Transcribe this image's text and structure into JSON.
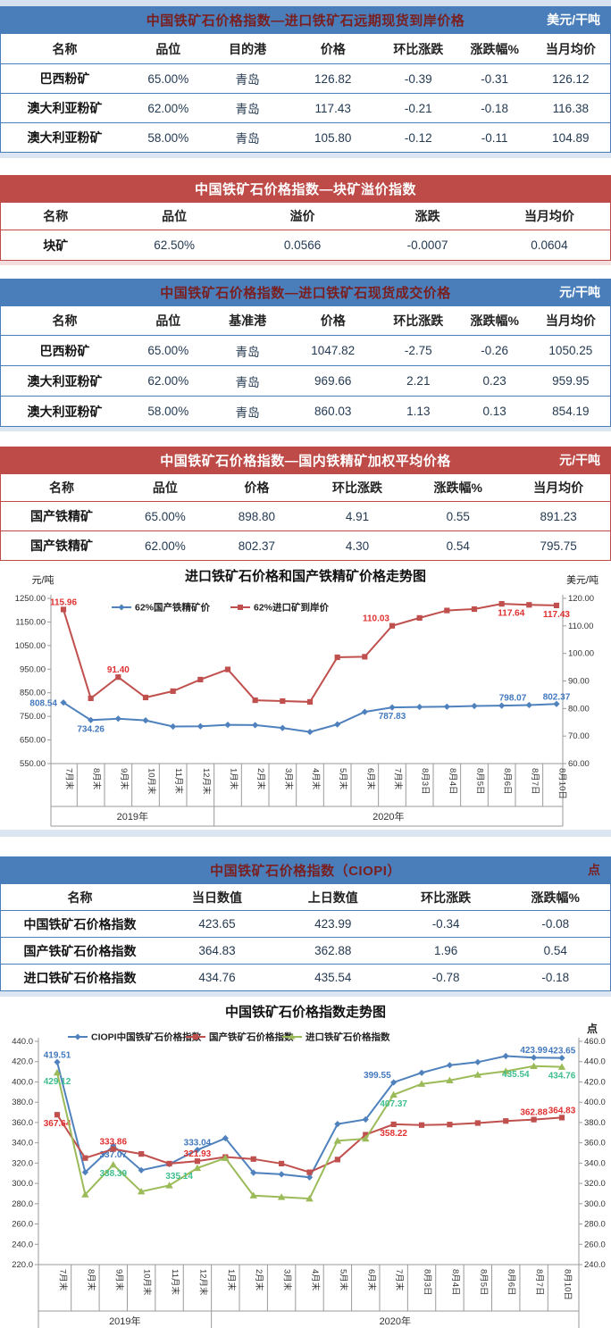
{
  "colors": {
    "header_blue": "#4A7EBB",
    "header_red": "#BE4B48",
    "title_maroon": "#7A1F1F",
    "axis_gray": "#9A9A9A",
    "tick_text": "#333333"
  },
  "tables": [
    {
      "theme": "blue",
      "title": "中国铁矿石价格指数—进口铁矿石远期现货到岸价格",
      "unit": "美元/干吨",
      "unit_dark": false,
      "columns": [
        "名称",
        "品位",
        "目的港",
        "价格",
        "环比涨跌",
        "涨跌幅%",
        "当月均价"
      ],
      "rows": [
        [
          "巴西粉矿",
          "65.00%",
          "青岛",
          "126.82",
          "-0.39",
          "-0.31",
          "126.12"
        ],
        [
          "澳大利亚粉矿",
          "62.00%",
          "青岛",
          "117.43",
          "-0.21",
          "-0.18",
          "116.38"
        ],
        [
          "澳大利亚粉矿",
          "58.00%",
          "青岛",
          "105.80",
          "-0.12",
          "-0.11",
          "104.89"
        ]
      ]
    },
    {
      "theme": "red",
      "title": "中国铁矿石价格指数—块矿溢价指数",
      "unit": "",
      "unit_dark": false,
      "columns": [
        "名称",
        "品位",
        "溢价",
        "涨跌",
        "当月均价"
      ],
      "rows": [
        [
          "块矿",
          "62.50%",
          "0.0566",
          "-0.0007",
          "0.0604"
        ]
      ]
    },
    {
      "theme": "blue",
      "title": "中国铁矿石价格指数—进口铁矿石现货成交价格",
      "unit": "元/干吨",
      "unit_dark": false,
      "columns": [
        "名称",
        "品位",
        "基准港",
        "价格",
        "环比涨跌",
        "涨跌幅%",
        "当月均价"
      ],
      "rows": [
        [
          "巴西粉矿",
          "65.00%",
          "青岛",
          "1047.82",
          "-2.75",
          "-0.26",
          "1050.25"
        ],
        [
          "澳大利亚粉矿",
          "62.00%",
          "青岛",
          "969.66",
          "2.21",
          "0.23",
          "959.95"
        ],
        [
          "澳大利亚粉矿",
          "58.00%",
          "青岛",
          "860.03",
          "1.13",
          "0.13",
          "854.19"
        ]
      ]
    },
    {
      "theme": "red",
      "title": "中国铁矿石价格指数—国内铁精矿加权平均价格",
      "unit": "元/干吨",
      "unit_dark": false,
      "columns": [
        "名称",
        "品位",
        "价格",
        "环比涨跌",
        "涨跌幅%",
        "当月均价"
      ],
      "rows": [
        [
          "国产铁精矿",
          "65.00%",
          "898.80",
          "4.91",
          "0.55",
          "891.23"
        ],
        [
          "国产铁精矿",
          "62.00%",
          "802.37",
          "4.30",
          "0.54",
          "795.75"
        ]
      ]
    },
    {
      "theme": "blue",
      "title": "中国铁矿石价格指数（CIOPI）",
      "unit": "点",
      "unit_dark": true,
      "columns": [
        "名称",
        "当日数值",
        "上日数值",
        "环比涨跌",
        "涨跌幅%"
      ],
      "rows": [
        [
          "中国铁矿石价格指数",
          "423.65",
          "423.99",
          "-0.34",
          "-0.08"
        ],
        [
          "国产铁矿石价格指数",
          "364.83",
          "362.88",
          "1.96",
          "0.54"
        ],
        [
          "进口铁矿石价格指数",
          "434.76",
          "435.54",
          "-0.78",
          "-0.18"
        ]
      ]
    }
  ],
  "chart_data": [
    {
      "type": "line",
      "title": "进口铁矿石价格和国产铁精矿价格走势图",
      "left_axis": {
        "label": "元/吨",
        "min": 550,
        "max": 1250,
        "step": 100,
        "decimals": 2
      },
      "right_axis": {
        "label": "美元/吨",
        "min": 60,
        "max": 120,
        "step": 10,
        "decimals": 2
      },
      "categories": [
        "7月末",
        "8月末",
        "9月末",
        "10月末",
        "11月末",
        "12月末",
        "1月末",
        "2月末",
        "3月末",
        "4月末",
        "5月末",
        "6月末",
        "7月末",
        "8月3日",
        "8月4日",
        "8月5日",
        "8月6日",
        "8月7日",
        "8月10日"
      ],
      "year_groups": [
        {
          "label": "2019年",
          "span": 6
        },
        {
          "label": "2020年",
          "span": 13
        }
      ],
      "series": [
        {
          "name": "62%国产铁精矿价",
          "axis": "left",
          "marker": "diamond",
          "color": "#4F81BD",
          "label_color": "#4379BE",
          "values": [
            808.54,
            734.26,
            740,
            733,
            707,
            708,
            714,
            713,
            701,
            684,
            716,
            769,
            787.83,
            790,
            791,
            794,
            795.5,
            798.07,
            802.37
          ],
          "labels": [
            {
              "i": 0,
              "text": "808.54",
              "pos": "left"
            },
            {
              "i": 1,
              "text": "734.26",
              "pos": "below"
            },
            {
              "i": 12,
              "text": "787.83",
              "pos": "below"
            },
            {
              "i": 17,
              "text": "798.07",
              "pos": "above-left"
            },
            {
              "i": 18,
              "text": "802.37",
              "pos": "above"
            }
          ]
        },
        {
          "name": "62%进口矿到岸价",
          "axis": "right",
          "marker": "square",
          "color": "#C0504D",
          "label_color": "#E03131",
          "values": [
            115.96,
            83.7,
            91.4,
            84.0,
            86.3,
            90.5,
            94.2,
            83.0,
            82.7,
            82.4,
            98.6,
            98.8,
            110.03,
            112.9,
            115.6,
            116.1,
            118.0,
            117.64,
            117.43
          ],
          "labels": [
            {
              "i": 0,
              "text": "115.96",
              "pos": "above"
            },
            {
              "i": 2,
              "text": "91.40",
              "pos": "above"
            },
            {
              "i": 12,
              "text": "110.03",
              "pos": "above-left"
            },
            {
              "i": 17,
              "text": "117.64",
              "pos": "below-left"
            },
            {
              "i": 18,
              "text": "117.43",
              "pos": "below"
            }
          ]
        }
      ]
    },
    {
      "type": "line",
      "title": "中国铁矿石价格指数走势图",
      "unit": "点",
      "left_axis": {
        "label": "",
        "min": 220,
        "max": 440,
        "step": 20,
        "decimals": 1
      },
      "right_axis": {
        "label": "",
        "min": 240,
        "max": 460,
        "step": 20,
        "decimals": 1
      },
      "categories": [
        "7月末",
        "8月末",
        "9月末",
        "10月末",
        "11月末",
        "12月末",
        "1月末",
        "2月末",
        "3月末",
        "4月末",
        "5月末",
        "6月末",
        "7月末",
        "8月3日",
        "8月4日",
        "8月5日",
        "8月6日",
        "8月7日",
        "8月10日"
      ],
      "year_groups": [
        {
          "label": "2019年",
          "span": 6
        },
        {
          "label": "2020年",
          "span": 13
        }
      ],
      "series": [
        {
          "name": "CIOPI中国铁矿石价格指数",
          "axis": "left",
          "marker": "diamond",
          "color": "#4F81BD",
          "label_color": "#4379BE",
          "values": [
            419.51,
            311,
            337.07,
            313,
            319,
            333.04,
            344.5,
            310.5,
            309,
            306,
            358.5,
            363,
            399.55,
            409,
            416.5,
            419.5,
            425.5,
            423.99,
            423.65
          ],
          "labels": [
            {
              "i": 0,
              "text": "419.51",
              "pos": "above"
            },
            {
              "i": 2,
              "text": "337.07",
              "pos": "below"
            },
            {
              "i": 5,
              "text": "333.04",
              "pos": "above"
            },
            {
              "i": 12,
              "text": "399.55",
              "pos": "above-left"
            },
            {
              "i": 17,
              "text": "423.99",
              "pos": "above"
            },
            {
              "i": 18,
              "text": "423.65",
              "pos": "above"
            }
          ]
        },
        {
          "name": "国产铁矿石价格指数",
          "axis": "left",
          "marker": "square",
          "color": "#C0504D",
          "label_color": "#E03131",
          "values": [
            367.64,
            325,
            333.86,
            329,
            319.5,
            321.93,
            326,
            324,
            319.5,
            311,
            323.5,
            348,
            358.22,
            357.5,
            358,
            359.5,
            361.5,
            362.88,
            364.83
          ],
          "labels": [
            {
              "i": 0,
              "text": "367.64",
              "pos": "below"
            },
            {
              "i": 2,
              "text": "333.86",
              "pos": "above"
            },
            {
              "i": 5,
              "text": "321.93",
              "pos": "above"
            },
            {
              "i": 12,
              "text": "358.22",
              "pos": "below"
            },
            {
              "i": 17,
              "text": "362.88",
              "pos": "above"
            },
            {
              "i": 18,
              "text": "364.83",
              "pos": "above"
            }
          ]
        },
        {
          "name": "进口铁矿石价格指数",
          "axis": "right",
          "marker": "triangle",
          "color": "#9BBB59",
          "label_color": "#3FBE8E",
          "values": [
            429.12,
            309,
            338.39,
            312,
            318,
            335.14,
            345,
            308,
            306.5,
            305,
            362,
            364,
            407.37,
            418,
            421.5,
            427,
            430.5,
            435.54,
            434.76
          ],
          "labels": [
            {
              "i": 0,
              "text": "429.12",
              "pos": "below"
            },
            {
              "i": 2,
              "text": "338.39",
              "pos": "below"
            },
            {
              "i": 5,
              "text": "335.14",
              "pos": "below-left"
            },
            {
              "i": 12,
              "text": "407.37",
              "pos": "below"
            },
            {
              "i": 17,
              "text": "435.54",
              "pos": "below-left"
            },
            {
              "i": 18,
              "text": "434.76",
              "pos": "below"
            }
          ]
        }
      ]
    }
  ]
}
